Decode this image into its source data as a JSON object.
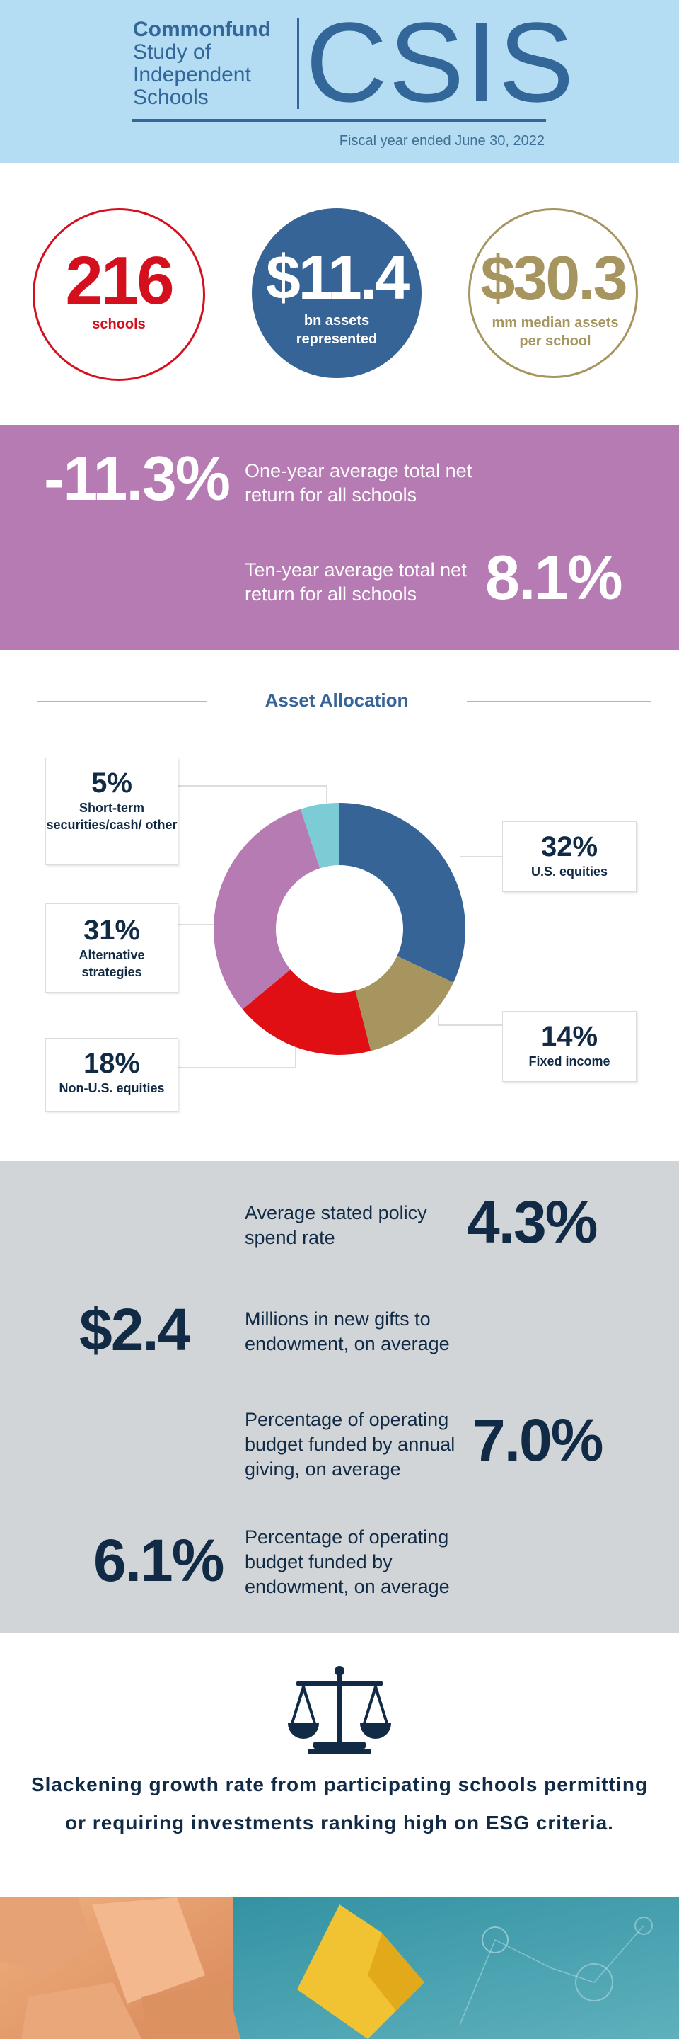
{
  "header": {
    "logo_line1": "Commonfund",
    "logo_line2": "Study of",
    "logo_line3": "Independent",
    "logo_line4": "Schools",
    "logo_acronym": "CSIS",
    "fiscal": "Fiscal year ended June 30, 2022",
    "bg_color": "#b4dcf3"
  },
  "stats": {
    "schools": {
      "value": "216",
      "label": "schools",
      "color": "#d40f1e"
    },
    "assets": {
      "value": "$11.4",
      "label": "bn assets represented",
      "color": "#376497"
    },
    "median": {
      "value": "$30.3",
      "label": "mm median assets per school",
      "color": "#a6955e"
    }
  },
  "returns": {
    "one_year_value": "-11.3%",
    "one_year_label": "One-year average total net return for all schools",
    "ten_year_value": "8.1%",
    "ten_year_label": "Ten-year average total net return for all schools",
    "bg_color": "#b57bb2"
  },
  "allocation": {
    "title": "Asset Allocation",
    "items": [
      {
        "pct": "32%",
        "label": "U.S. equities",
        "value": 32,
        "color": "#376497"
      },
      {
        "pct": "14%",
        "label": "Fixed income",
        "value": 14,
        "color": "#a6955e"
      },
      {
        "pct": "18%",
        "label": "Non-U.S. equities",
        "value": 18,
        "color": "#e00f14"
      },
      {
        "pct": "31%",
        "label": "Alternative strategies",
        "value": 31,
        "color": "#b57bb2"
      },
      {
        "pct": "5%",
        "label": "Short-term securities/cash/ other",
        "value": 5,
        "color": "#7cccd6"
      }
    ]
  },
  "metrics": {
    "spend_rate_value": "4.3%",
    "spend_rate_label": "Average stated policy spend rate",
    "gifts_value": "$2.4",
    "gifts_label": "Millions in new gifts to endowment, on average",
    "annual_giving_value": "7.0%",
    "annual_giving_label": "Percentage of operating budget funded by annual giving, on average",
    "endowment_value": "6.1%",
    "endowment_label": "Percentage of operating budget funded by endowment, on average",
    "bg_color": "#d2d5d8"
  },
  "esg": {
    "icon": "scales-of-justice-icon",
    "text": "Slackening growth rate from participating schools permitting or requiring investments ranking high on ESG criteria."
  }
}
